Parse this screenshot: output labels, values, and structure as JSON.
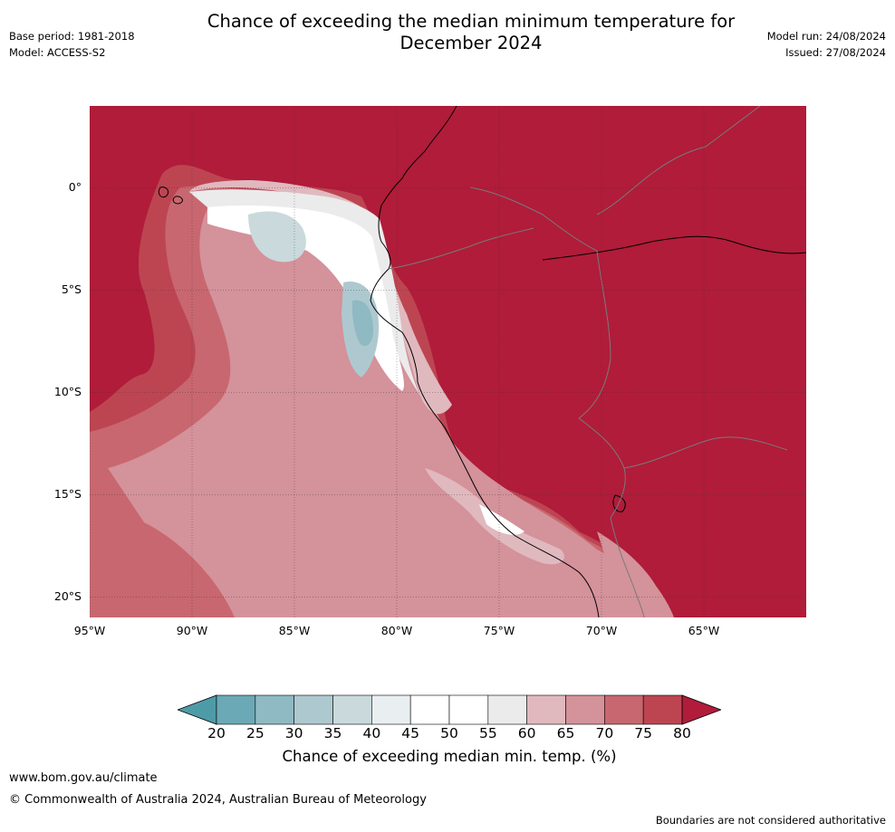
{
  "title": "Chance of exceeding the median minimum temperature for December 2024",
  "meta": {
    "base_period": "Base period: 1981-2018",
    "model": "Model: ACCESS-S2",
    "model_run": "Model run: 24/08/2024",
    "issued": "Issued: 27/08/2024"
  },
  "map": {
    "lon_range": [
      -95,
      -60
    ],
    "lat_range": [
      -21,
      4
    ],
    "lat_ticks": [
      "0°",
      "5°S",
      "10°S",
      "15°S",
      "20°S"
    ],
    "lon_ticks": [
      "95°W",
      "90°W",
      "85°W",
      "80°W",
      "75°W",
      "70°W",
      "65°W"
    ],
    "background_class_color": "#b01c3a",
    "coast_color": "#000000",
    "border_color": "#7a7a7a"
  },
  "colorbar": {
    "ticks": [
      "20",
      "25",
      "30",
      "35",
      "40",
      "45",
      "50",
      "55",
      "60",
      "65",
      "70",
      "75",
      "80"
    ],
    "colors": [
      "#6aa9b5",
      "#8fb9c3",
      "#adc9cf",
      "#c9d9dc",
      "#e9eff0",
      "#ffffff",
      "#ffffff",
      "#ebebeb",
      "#e0b9bf",
      "#d4929b",
      "#c8676f",
      "#bd4552"
    ],
    "under_color": "#4e9ba8",
    "over_color": "#b01c3a",
    "label": "Chance of exceeding median min. temp. (%)"
  },
  "footer": {
    "url": "www.bom.gov.au/climate",
    "copyright": "© Commonwealth of Australia 2024, Australian Bureau of Meteorology",
    "note": "Boundaries are not considered authoritative"
  }
}
